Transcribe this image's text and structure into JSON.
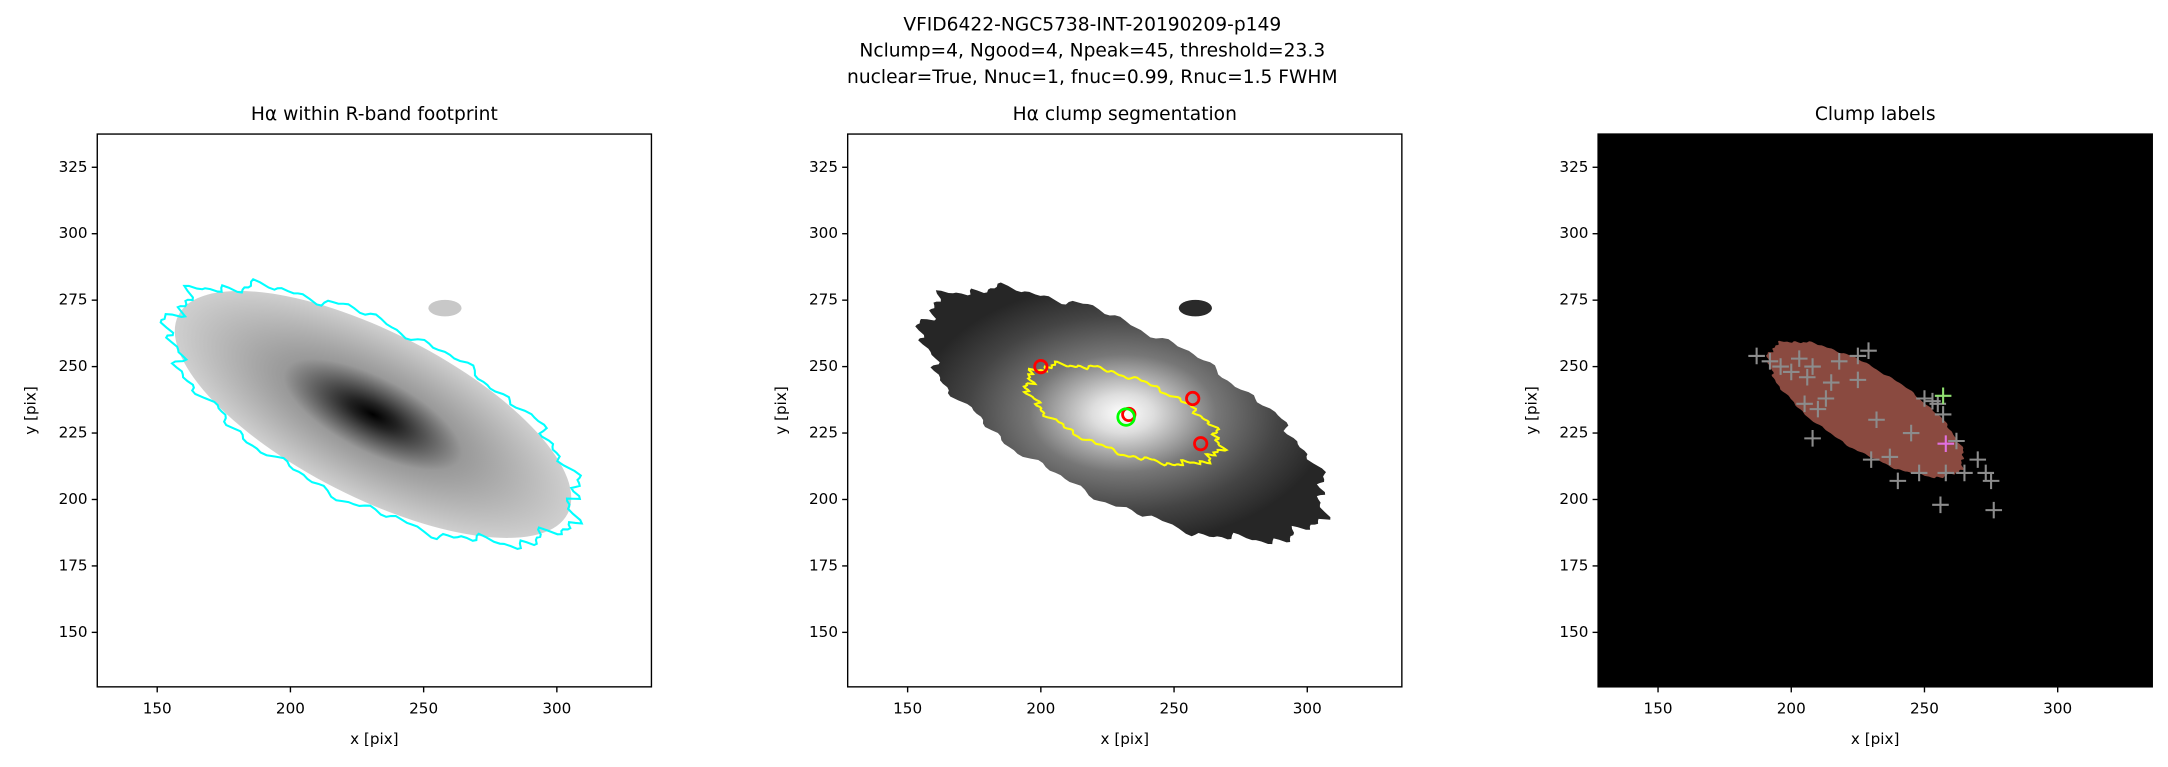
{
  "suptitle": [
    "VFID6422-NGC5738-INT-20190209-p149",
    "Nclump=4, Ngood=4, Npeak=45, threshold=23.3",
    "nuclear=True, Nnuc=1, fnuc=0.99, Rnuc=1.5 FWHM"
  ],
  "chart_data": [
    {
      "type": "image",
      "title": "Hα within R-band footprint",
      "xlabel": "x [pix]",
      "ylabel": "y [pix]",
      "xlim": [
        127.5,
        335.5
      ],
      "ylim": [
        129.5,
        337.5
      ],
      "xticks": [
        150,
        200,
        250,
        300
      ],
      "yticks": [
        150,
        175,
        200,
        225,
        250,
        275,
        300,
        325
      ],
      "background": "#ffffff",
      "series": []
    },
    {
      "type": "image",
      "title": "Hα clump segmentation",
      "xlabel": "x [pix]",
      "ylabel": "y [pix]",
      "xlim": [
        127.5,
        335.5
      ],
      "ylim": [
        129.5,
        337.5
      ],
      "xticks": [
        150,
        200,
        250,
        300
      ],
      "yticks": [
        150,
        175,
        200,
        225,
        250,
        275,
        300,
        325
      ],
      "background": "#ffffff",
      "series": [
        {
          "marker": "circle-open",
          "color": "#ff0000",
          "x": [
            200,
            257,
            260,
            233
          ],
          "y": [
            250,
            238,
            221,
            232
          ]
        },
        {
          "marker": "circle-open",
          "color": "#00ff00",
          "x": [
            232
          ],
          "y": [
            231
          ]
        }
      ]
    },
    {
      "type": "image",
      "title": "Clump labels",
      "xlabel": "x [pix]",
      "ylabel": "y [pix]",
      "xlim": [
        127.5,
        335.5
      ],
      "ylim": [
        129.5,
        337.5
      ],
      "xticks": [
        150,
        200,
        250,
        300
      ],
      "yticks": [
        150,
        175,
        200,
        225,
        250,
        275,
        300,
        325
      ],
      "background": "#000000",
      "series": [
        {
          "marker": "plus",
          "color": "#8c8c8c",
          "x": [
            187,
            192,
            196,
            200,
            203,
            206,
            208,
            205,
            210,
            208,
            213,
            218,
            225,
            229,
            232,
            230,
            237,
            240,
            245,
            248,
            250,
            253,
            255,
            256,
            257,
            258,
            262,
            265,
            270,
            273,
            275,
            276,
            225,
            215
          ],
          "y": [
            254,
            252,
            250,
            248,
            253,
            246,
            250,
            236,
            234,
            223,
            238,
            252,
            254,
            256,
            230,
            215,
            216,
            207,
            225,
            210,
            238,
            237,
            236,
            198,
            232,
            210,
            222,
            210,
            215,
            210,
            207,
            196,
            245,
            244
          ]
        },
        {
          "marker": "plus",
          "color": "#90e070",
          "x": [
            257
          ],
          "y": [
            239
          ]
        },
        {
          "marker": "plus",
          "color": "#e070e0",
          "x": [
            258
          ],
          "y": [
            221
          ]
        }
      ]
    }
  ]
}
